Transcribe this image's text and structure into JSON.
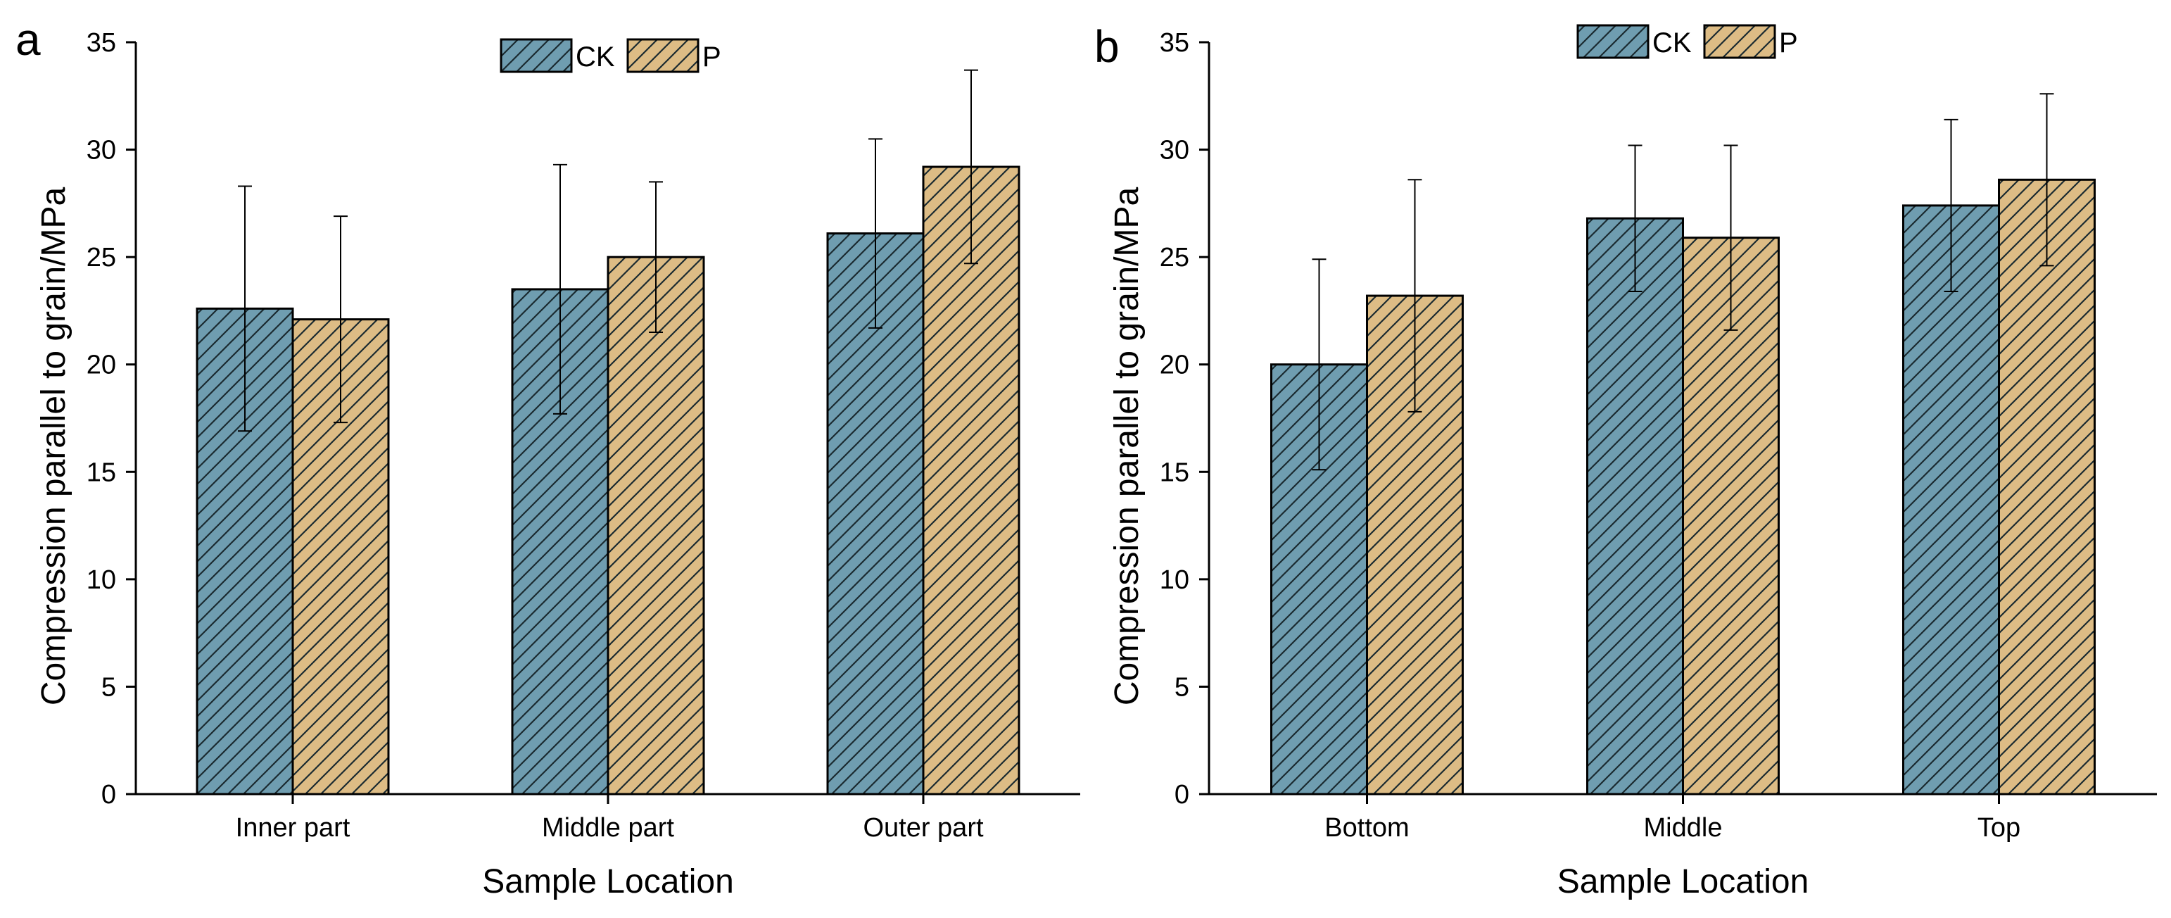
{
  "colors": {
    "ck_fill": "#6f9db0",
    "p_fill": "#ddbc85",
    "hatch": "#1a2a30",
    "outline": "#000000"
  },
  "chart_data": [
    {
      "panel": "a",
      "type": "bar",
      "title": "",
      "xlabel": "Sample Location",
      "ylabel": "Compression parallel to grain/MPa",
      "ylim": [
        0,
        35
      ],
      "yticks": [
        0,
        5,
        10,
        15,
        20,
        25,
        30,
        35
      ],
      "categories": [
        "Inner part",
        "Middle part",
        "Outer part"
      ],
      "legend_position": "top-center",
      "series": [
        {
          "name": "CK",
          "color_key": "ck_fill",
          "values": [
            22.6,
            23.5,
            26.1
          ],
          "errors": [
            5.7,
            5.8,
            4.4
          ]
        },
        {
          "name": "P",
          "color_key": "p_fill",
          "values": [
            22.1,
            25.0,
            29.2
          ],
          "errors": [
            4.8,
            3.5,
            4.5
          ]
        }
      ]
    },
    {
      "panel": "b",
      "type": "bar",
      "title": "",
      "xlabel": "Sample Location",
      "ylabel": "Compression parallel to grain/MPa",
      "ylim": [
        0,
        35
      ],
      "yticks": [
        0,
        5,
        10,
        15,
        20,
        25,
        30,
        35
      ],
      "categories": [
        "Bottom",
        "Middle",
        "Top"
      ],
      "legend_position": "top-center",
      "series": [
        {
          "name": "CK",
          "color_key": "ck_fill",
          "values": [
            20.0,
            26.8,
            27.4
          ],
          "errors": [
            4.9,
            3.4,
            4.0
          ]
        },
        {
          "name": "P",
          "color_key": "p_fill",
          "values": [
            23.2,
            25.9,
            28.6
          ],
          "errors": [
            5.4,
            4.3,
            4.0
          ]
        }
      ]
    }
  ]
}
